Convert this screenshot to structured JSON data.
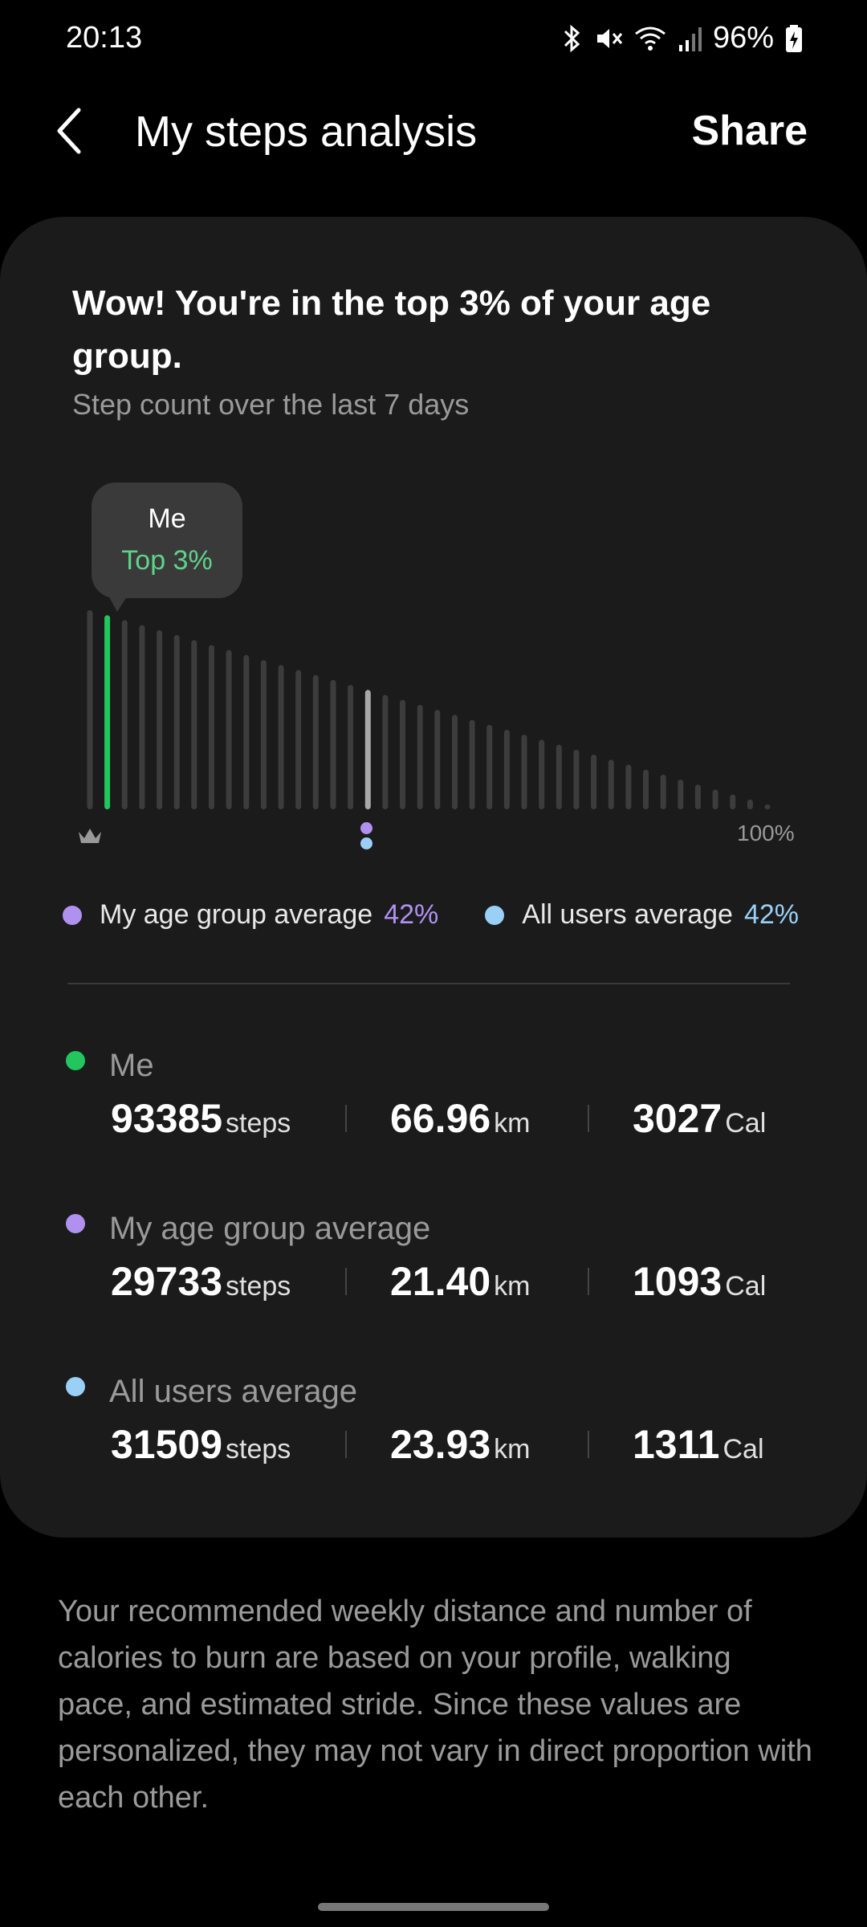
{
  "status_bar": {
    "time": "20:13",
    "battery": "96%",
    "icons": [
      "bluetooth-icon",
      "mute-icon",
      "wifi-icon",
      "signal-icon",
      "battery-charging-icon"
    ]
  },
  "header": {
    "title": "My steps analysis",
    "share_label": "Share"
  },
  "card": {
    "headline": "Wow! You're in the top 3% of your age group.",
    "subline": "Step count over the last 7 days",
    "tooltip": {
      "title": "Me",
      "value": "Top 3%"
    },
    "axis_end_label": "100%"
  },
  "legend": [
    {
      "label": "My age group average",
      "value": "42%",
      "color": "#b191f0"
    },
    {
      "label": "All users average",
      "value": "42%",
      "color": "#9ad0f6"
    }
  ],
  "stats": [
    {
      "name": "Me",
      "color": "#22c55e",
      "steps": "93385",
      "steps_unit": "steps",
      "distance": "66.96",
      "distance_unit": "km",
      "calories": "3027",
      "calories_unit": "Cal"
    },
    {
      "name": "My age group average",
      "color": "#b191f0",
      "steps": "29733",
      "steps_unit": "steps",
      "distance": "21.40",
      "distance_unit": "km",
      "calories": "1093",
      "calories_unit": "Cal"
    },
    {
      "name": "All users average",
      "color": "#9ad0f6",
      "steps": "31509",
      "steps_unit": "steps",
      "distance": "23.93",
      "distance_unit": "km",
      "calories": "1311",
      "calories_unit": "Cal"
    }
  ],
  "footnote": "Your recommended weekly distance and number of calories to burn are based on your profile, walking pace, and estimated stride. Since these values are personalized, they may not vary in direct proportion with each other.",
  "colors": {
    "accent_green": "#22c55e",
    "card_bg": "#1b1b1b"
  }
}
